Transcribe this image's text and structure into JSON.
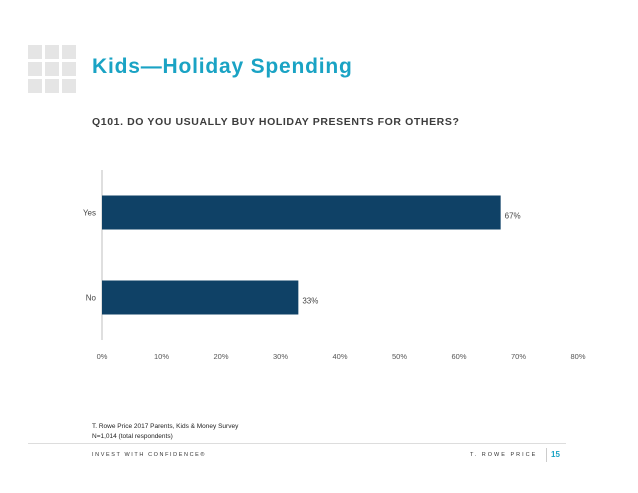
{
  "slide": {
    "title": "Kids—Holiday Spending",
    "question": "Q101. DO YOU USUALLY BUY HOLIDAY PRESENTS FOR OTHERS?",
    "footnote_line1": "T. Rowe Price 2017 Parents, Kids & Money Survey",
    "footnote_line2": "N=1,014 (total respondents)",
    "tagline": "INVEST WITH CONFIDENCE®",
    "brand": "T. ROWE PRICE",
    "page_number": "15"
  },
  "colors": {
    "accent": "#1aa3c4",
    "bar": "#0f4166"
  },
  "chart_data": {
    "type": "bar",
    "orientation": "horizontal",
    "categories": [
      "Yes",
      "No"
    ],
    "values": [
      67,
      33
    ],
    "data_labels": [
      "67%",
      "33%"
    ],
    "xlim": [
      0,
      80
    ],
    "xticks": [
      "0%",
      "10%",
      "20%",
      "30%",
      "40%",
      "50%",
      "60%",
      "70%",
      "80%"
    ],
    "grid": false,
    "legend": "none"
  }
}
